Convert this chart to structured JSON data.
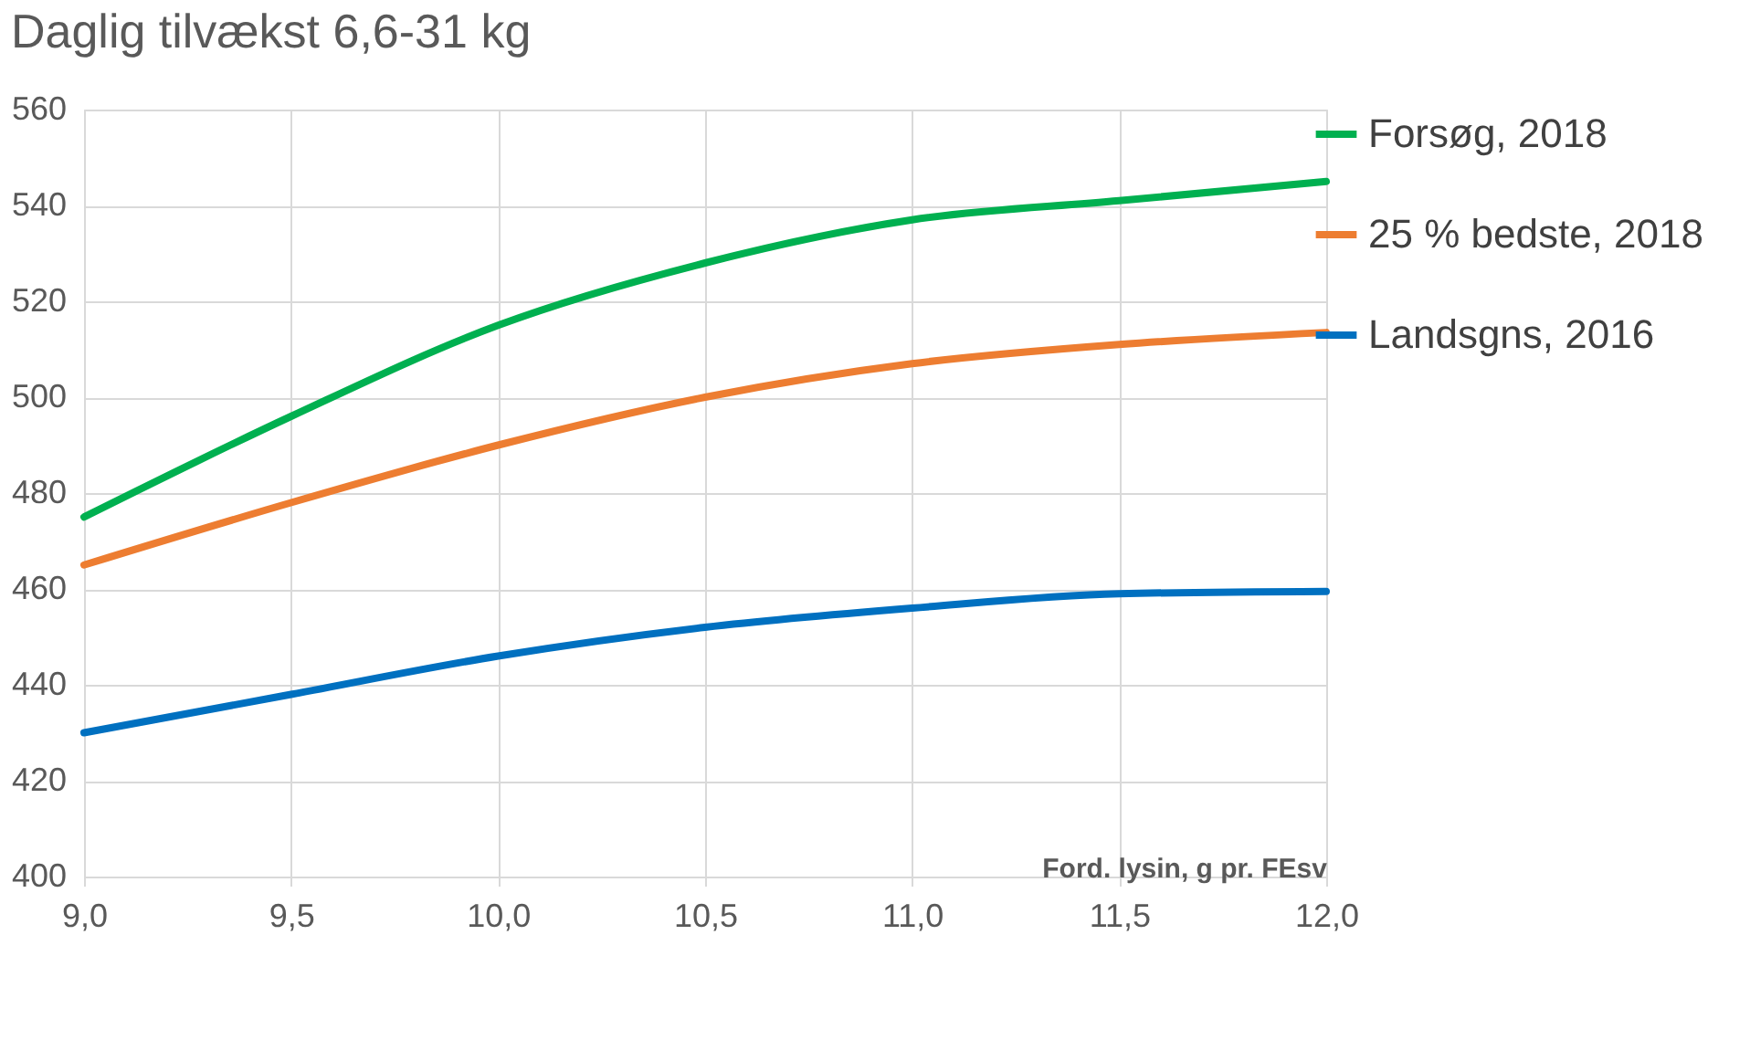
{
  "chart_data": {
    "type": "line",
    "title": "Daglig tilvækst 6,6-31 kg",
    "xlabel": "Ford. lysin, g pr. FEsv",
    "x": [
      9.0,
      9.5,
      10.0,
      10.5,
      11.0,
      11.5,
      12.0
    ],
    "series": [
      {
        "name": "Forsøg, 2018",
        "color": "#00b050",
        "values": [
          475,
          496,
          515,
          528,
          537,
          541,
          545
        ]
      },
      {
        "name": "25 % bedste, 2018",
        "color": "#ed7d31",
        "values": [
          465,
          478,
          490,
          500,
          507,
          511,
          513.5
        ]
      },
      {
        "name": "Landsgns, 2016",
        "color": "#0070c0",
        "values": [
          430,
          438,
          446,
          452,
          456,
          459,
          459.5
        ]
      }
    ],
    "xlim": [
      9.0,
      12.0
    ],
    "xticks": [
      {
        "value": 9.0,
        "label": "9,0"
      },
      {
        "value": 9.5,
        "label": "9,5"
      },
      {
        "value": 10.0,
        "label": "10,0"
      },
      {
        "value": 10.5,
        "label": "10,5"
      },
      {
        "value": 11.0,
        "label": "11,0"
      },
      {
        "value": 11.5,
        "label": "11,5"
      },
      {
        "value": 12.0,
        "label": "12,0"
      }
    ],
    "ylim": [
      400,
      560
    ],
    "yticks": [
      400,
      420,
      440,
      460,
      480,
      500,
      520,
      540,
      560
    ],
    "grid": true,
    "legend": "right",
    "marker": "none",
    "line_style": "solid"
  }
}
